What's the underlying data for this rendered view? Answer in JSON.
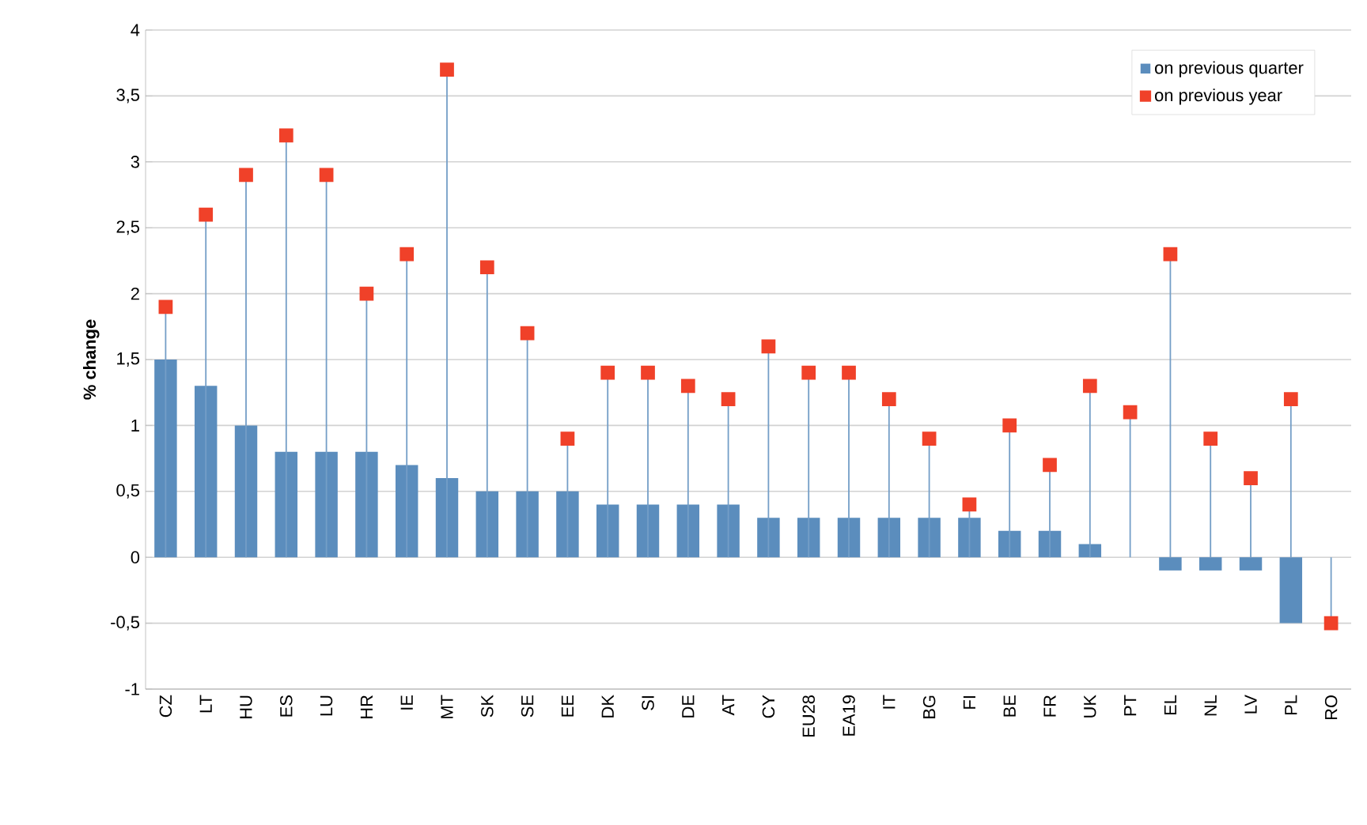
{
  "chart_data": {
    "type": "bar",
    "ylabel": "% change",
    "categories": [
      "CZ",
      "LT",
      "HU",
      "ES",
      "LU",
      "HR",
      "IE",
      "MT",
      "SK",
      "SE",
      "EE",
      "DK",
      "SI",
      "DE",
      "AT",
      "CY",
      "EU28",
      "EA19",
      "IT",
      "BG",
      "FI",
      "BE",
      "FR",
      "UK",
      "PT",
      "EL",
      "NL",
      "LV",
      "PL",
      "RO"
    ],
    "series": [
      {
        "name": "on previous quarter",
        "color": "#5b8dbd",
        "values": [
          1.5,
          1.3,
          1.0,
          0.8,
          0.8,
          0.8,
          0.7,
          0.6,
          0.5,
          0.5,
          0.5,
          0.4,
          0.4,
          0.4,
          0.4,
          0.3,
          0.3,
          0.3,
          0.3,
          0.3,
          0.3,
          0.2,
          0.2,
          0.1,
          0,
          -0.1,
          -0.1,
          -0.1,
          -0.5,
          0
        ]
      },
      {
        "name": "on previous year",
        "type": "lollipop",
        "color": "#f04129",
        "values": [
          1.9,
          2.6,
          2.9,
          3.2,
          2.9,
          2.0,
          2.3,
          3.7,
          2.2,
          1.7,
          0.9,
          1.4,
          1.4,
          1.3,
          1.2,
          1.6,
          1.4,
          1.4,
          1.2,
          0.9,
          0.4,
          1.0,
          0.7,
          1.3,
          1.1,
          2.3,
          0.9,
          0.6,
          1.2,
          -0.5
        ]
      }
    ],
    "ylim": [
      -1,
      4
    ],
    "yticks": [
      {
        "value": -1,
        "label": "-1"
      },
      {
        "value": -0.5,
        "label": "-0,5"
      },
      {
        "value": 0,
        "label": "0"
      },
      {
        "value": 0.5,
        "label": "0,5"
      },
      {
        "value": 1,
        "label": "1"
      },
      {
        "value": 1.5,
        "label": "1,5"
      },
      {
        "value": 2,
        "label": "2"
      },
      {
        "value": 2.5,
        "label": "2,5"
      },
      {
        "value": 3,
        "label": "3"
      },
      {
        "value": 3.5,
        "label": "3,5"
      },
      {
        "value": 4,
        "label": "4"
      }
    ],
    "grid": "y",
    "legend": "top right",
    "marker": "square"
  }
}
